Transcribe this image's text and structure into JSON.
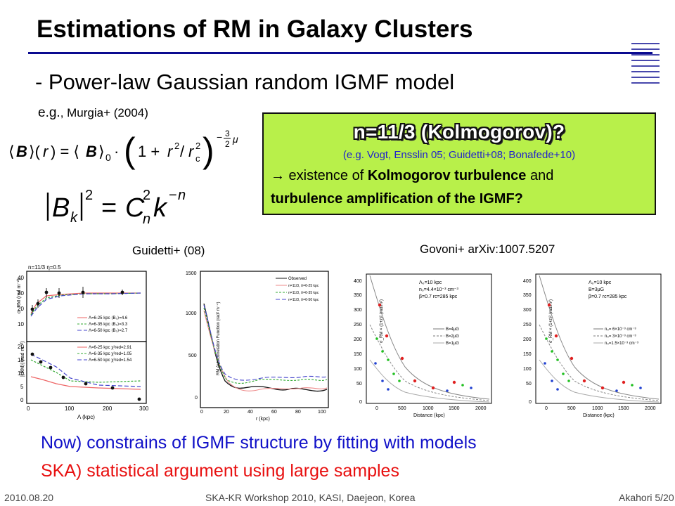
{
  "slide": {
    "title": "Estimations of RM in Galaxy Clusters",
    "subtitle": "- Power-law Gaussian random IGMF model",
    "eg_prefix": "e.g.",
    "eg_ref": ", Murgia+ (2004)"
  },
  "equations": {
    "profile": "⟨B⟩(r) = ⟨B⟩₀ · (1 + r²/r_c²)^(−3μ/2)",
    "spectrum": "|B_k|² = C_n² k^(−n)"
  },
  "highlight_box": {
    "title": "n=11/3 (Kolmogorov)?",
    "refs": "(e.g. Vogt, Ensslin 05; Guidetti+08; Bonafede+10)",
    "line1_prefix": "→ existence of ",
    "line1_bold": "Kolmogorov turbulence",
    "line1_suffix": " and",
    "line2": "turbulence amplification of the IGMF?",
    "background": "#b8f04a"
  },
  "figures": {
    "guidetti_label": "Guidetti+ (08)",
    "govoni_label": "Govoni+ arXiv:1007.5207",
    "left_top_panel": {
      "header": "n=11/3   η=0.5",
      "ylabel": "σ_RM (rad m⁻²)",
      "yticks": [
        "40",
        "30",
        "20",
        "10"
      ],
      "legend": [
        "Λ=6-25 kpc  ⟨B₀⟩=4.6",
        "Λ=6-35 kpc  ⟨B₀⟩=3.3",
        "Λ=6-50 kpc  ⟨B₀⟩=2.7"
      ]
    },
    "left_bottom_panel": {
      "ylabel": "|⟨RM⟩| (rad m⁻²)",
      "yticks": [
        "20",
        "15",
        "10",
        "5",
        "0"
      ],
      "xticks": [
        "0",
        "100",
        "200",
        "300"
      ],
      "xlabel": "Λ (kpc)",
      "legend": [
        "Λ=6-25 kpc  χ²red=2.91",
        "Λ=6-35 kpc  χ²red=1.05",
        "Λ=6-50 kpc  χ²red=1.54"
      ]
    },
    "acf_panel": {
      "ylabel": "RM Autocorrelation Function (rad² m⁻⁴)",
      "yticks": [
        "1500",
        "1000",
        "500",
        "0"
      ],
      "xticks": [
        "0",
        "20",
        "40",
        "60",
        "80",
        "100"
      ],
      "xlabel": "r (kpc)",
      "legend": [
        "Observed",
        "n=11/3, Λ=6-25 kpc",
        "n=11/3, Λ=6-35 kpc",
        "n=11/3, Λ=6-50 kpc"
      ]
    },
    "govoni_panel_1": {
      "yticks": [
        "400",
        "350",
        "300",
        "250",
        "200",
        "150",
        "100",
        "50",
        "0"
      ],
      "xticks": [
        "0",
        "500",
        "1000",
        "1500",
        "2000"
      ],
      "xlabel": "Distance (kpc)",
      "ylabel": "σ_RM × (1+z)² (rad/m²)",
      "params": [
        "Λ₀=10 kpc",
        "n₀=4.4×10⁻³ cm⁻³",
        "β=0.7  rc=285 kpc"
      ],
      "legend": [
        "B=4μG",
        "B=2μG",
        "B=1μG"
      ]
    },
    "govoni_panel_2": {
      "yticks": [
        "400",
        "350",
        "300",
        "250",
        "200",
        "150",
        "100",
        "50",
        "0"
      ],
      "xticks": [
        "0",
        "500",
        "1000",
        "1500",
        "2000"
      ],
      "xlabel": "Distance (kpc)",
      "ylabel": "σ_RM × (1+z)² (rad/m²)",
      "params": [
        "Λ₀=10 kpc",
        "B=3μG",
        "β=0.7  rc=285 kpc"
      ],
      "legend": [
        "n₀= 6×10⁻³ cm⁻³",
        "n₀= 3×10⁻³ cm⁻³",
        "n₀=1.5×10⁻³ cm⁻³"
      ]
    }
  },
  "bottom": {
    "now": "Now) constrains of IGMF structure by fitting with models",
    "ska": "SKA) statistical argument using large samples"
  },
  "footer": {
    "date": "2010.08.20",
    "center": "SKA-KR Workshop 2010, KASI, Daejeon, Korea",
    "right": "Akahori 5/20"
  },
  "colors": {
    "title_rule": "#0a0a90",
    "now_text": "#1010c8",
    "ska_text": "#e81010",
    "refs_text": "#2222cc"
  }
}
